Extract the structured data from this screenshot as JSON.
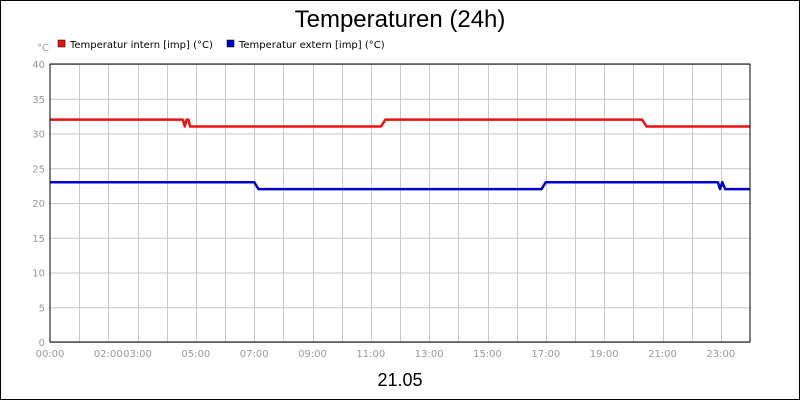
{
  "chart_data": {
    "type": "line",
    "title": "Temperaturen (24h)",
    "y_unit": "°C",
    "ylim": [
      0,
      40
    ],
    "y_ticks": [
      0,
      5,
      10,
      15,
      20,
      25,
      30,
      35,
      40
    ],
    "xlim": [
      "00:00",
      "24:00"
    ],
    "x_tick_labels": [
      {
        "label": "00:00",
        "t": 0
      },
      {
        "label": "02:00",
        "t": 2
      },
      {
        "label": "03:00",
        "t": 3
      },
      {
        "label": "05:00",
        "t": 5
      },
      {
        "label": "07:00",
        "t": 7
      },
      {
        "label": "09:00",
        "t": 9
      },
      {
        "label": "11:00",
        "t": 11
      },
      {
        "label": "13:00",
        "t": 13
      },
      {
        "label": "15:00",
        "t": 15
      },
      {
        "label": "17:00",
        "t": 17
      },
      {
        "label": "19:00",
        "t": 19
      },
      {
        "label": "21:00",
        "t": 21
      },
      {
        "label": "23:00",
        "t": 23
      }
    ],
    "date_label": "21.05",
    "grid": true,
    "legend_position": "top-left",
    "series": [
      {
        "name": "Temperatur intern [imp] (°C)",
        "color": "#ee1111",
        "points": [
          [
            0,
            32
          ],
          [
            4.55,
            32
          ],
          [
            4.62,
            31
          ],
          [
            4.68,
            32
          ],
          [
            4.75,
            32
          ],
          [
            4.8,
            31
          ],
          [
            11.35,
            31
          ],
          [
            11.5,
            32
          ],
          [
            20.3,
            32
          ],
          [
            20.45,
            31
          ],
          [
            24,
            31
          ]
        ]
      },
      {
        "name": "Temperatur extern [imp] (°C)",
        "color": "#0000cc",
        "points": [
          [
            0,
            23
          ],
          [
            7.0,
            23
          ],
          [
            7.15,
            22
          ],
          [
            16.85,
            22
          ],
          [
            17.0,
            23
          ],
          [
            22.9,
            23
          ],
          [
            22.97,
            22
          ],
          [
            23.05,
            23
          ],
          [
            23.15,
            22
          ],
          [
            24,
            22
          ]
        ]
      }
    ]
  }
}
